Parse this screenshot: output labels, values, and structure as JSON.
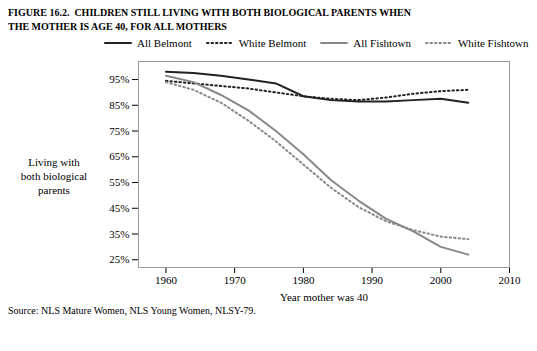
{
  "chart_data": {
    "type": "line",
    "title": "FIGURE 16.2.  CHILDREN STILL LIVING WITH BOTH BIOLOGICAL PARENTS WHEN\nTHE MOTHER IS AGE 40, FOR ALL MOTHERS",
    "source": "Source: NLS Mature Women, NLS Young Women, NLSY-79.",
    "xlabel": "Year mother was 40",
    "ylabel": "Living with\nboth biological\nparents",
    "x": [
      1960,
      1964,
      1968,
      1972,
      1976,
      1980,
      1984,
      1988,
      1992,
      1996,
      2000,
      2004
    ],
    "series": [
      {
        "name": "All Belmont",
        "color": "#222222",
        "line_style": "solid",
        "values": [
          98.0,
          97.5,
          96.5,
          95.0,
          93.5,
          88.5,
          87.0,
          86.5,
          86.5,
          87.0,
          87.5,
          86.0
        ]
      },
      {
        "name": "White Belmont",
        "color": "#222222",
        "line_style": "dotted",
        "values": [
          94.5,
          93.5,
          92.5,
          91.5,
          90.0,
          88.5,
          87.5,
          87.0,
          88.0,
          89.5,
          90.5,
          91.0
        ]
      },
      {
        "name": "All Fishtown",
        "color": "#888888",
        "line_style": "solid",
        "values": [
          96.5,
          94.0,
          89.0,
          83.0,
          75.0,
          66.0,
          56.0,
          48.0,
          41.0,
          36.0,
          30.0,
          27.0
        ]
      },
      {
        "name": "White Fishtown",
        "color": "#888888",
        "line_style": "dotted",
        "values": [
          94.0,
          91.0,
          86.0,
          79.0,
          71.0,
          62.0,
          53.0,
          45.5,
          40.0,
          36.5,
          34.0,
          33.0
        ]
      }
    ],
    "xlim": [
      1956,
      2010
    ],
    "xticks": [
      1960,
      1970,
      1980,
      1990,
      2000,
      2010
    ],
    "ylim": [
      22,
      102
    ],
    "yticks": [
      {
        "value": 25,
        "label": "25%"
      },
      {
        "value": 35,
        "label": "35%"
      },
      {
        "value": 45,
        "label": "45%"
      },
      {
        "value": 55,
        "label": "55%"
      },
      {
        "value": 65,
        "label": "65%"
      },
      {
        "value": 75,
        "label": "75%"
      },
      {
        "value": 85,
        "label": "85%"
      },
      {
        "value": 95,
        "label": "95%"
      }
    ],
    "grid": false,
    "legend": "top"
  }
}
